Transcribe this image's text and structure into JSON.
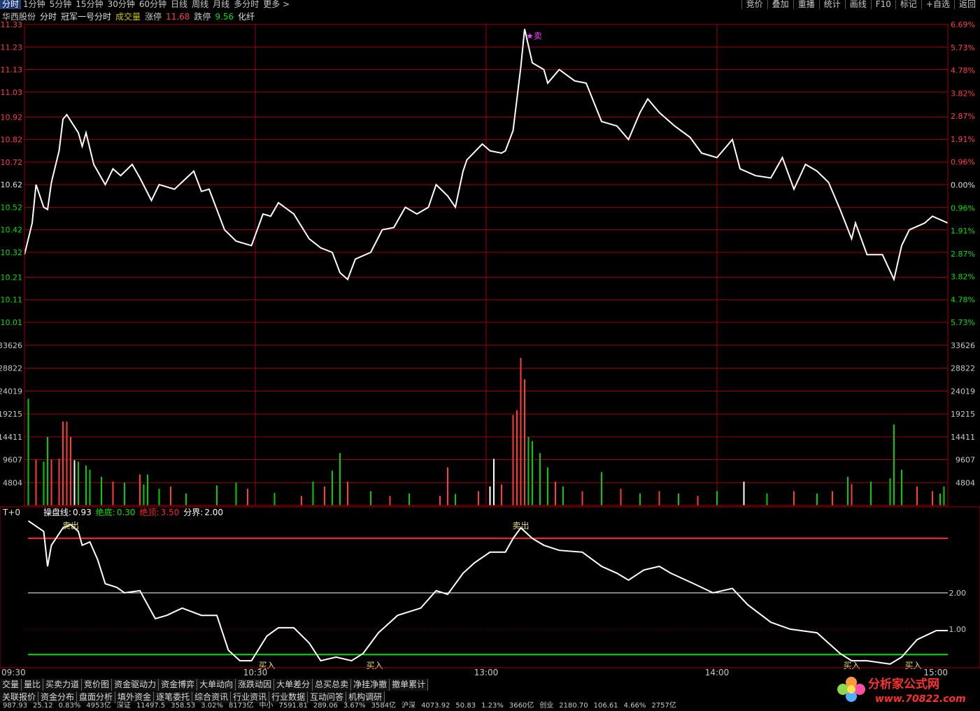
{
  "menu": [
    "分时",
    "1分钟",
    "5分钟",
    "15分钟",
    "30分钟",
    "60分钟",
    "日线",
    "周线",
    "月线",
    "多分时",
    "更多 >"
  ],
  "right_menu": [
    "竞价",
    "叠加",
    "重播",
    "统计",
    "画线",
    "F10",
    "标记",
    "+自选",
    "返回"
  ],
  "header": [
    {
      "text": "华西股份",
      "color": "#c8c8c8"
    },
    {
      "text": "分时",
      "color": "#e0e0e0"
    },
    {
      "text": "冠军一号分时",
      "color": "#e0e0e0"
    },
    {
      "text": "成交量",
      "color": "#d2c800"
    },
    {
      "text": "涨停",
      "color": "#c8c8c8"
    },
    {
      "text": "11.68",
      "color": "#ff4040"
    },
    {
      "text": "跌停",
      "color": "#c8c8c8"
    },
    {
      "text": "9.56",
      "color": "#00e000"
    },
    {
      "text": "化纤",
      "color": "#e0e0e0"
    }
  ],
  "chart_data": [
    {
      "type": "line",
      "color": "#ffffff",
      "x": [
        0,
        2,
        3,
        5,
        6,
        7,
        9,
        10,
        11,
        14,
        15,
        16,
        18,
        21,
        23,
        25,
        28,
        30,
        33,
        35,
        39,
        44,
        46,
        48,
        52,
        55,
        59,
        62,
        64,
        66,
        70,
        74,
        77,
        80,
        82,
        84,
        86,
        90,
        93,
        96,
        99,
        102,
        105,
        107,
        110,
        112,
        114,
        115,
        119,
        121,
        124,
        125,
        127,
        129,
        130,
        132,
        135,
        136,
        139,
        143,
        146,
        150,
        154,
        157,
        160,
        162,
        165,
        169,
        173,
        176,
        180,
        184,
        186,
        190,
        194,
        197,
        200,
        203,
        206,
        209,
        212,
        215,
        216,
        219,
        223,
        226,
        228,
        230,
        234,
        236,
        240
      ],
      "values": [
        10.31,
        10.45,
        10.62,
        10.52,
        10.51,
        10.63,
        10.77,
        10.91,
        10.93,
        10.85,
        10.79,
        10.85,
        10.71,
        10.62,
        10.69,
        10.66,
        10.71,
        10.65,
        10.55,
        10.62,
        10.6,
        10.68,
        10.59,
        10.6,
        10.42,
        10.37,
        10.35,
        10.49,
        10.48,
        10.54,
        10.49,
        10.38,
        10.34,
        10.32,
        10.23,
        10.2,
        10.29,
        10.32,
        10.42,
        10.43,
        10.52,
        10.49,
        10.52,
        10.62,
        10.57,
        10.52,
        10.68,
        10.73,
        10.8,
        10.77,
        10.76,
        10.77,
        10.86,
        11.14,
        11.31,
        11.16,
        11.13,
        11.07,
        11.13,
        11.08,
        11.07,
        10.9,
        10.88,
        10.82,
        10.94,
        11.0,
        10.94,
        10.88,
        10.83,
        10.76,
        10.74,
        10.82,
        10.69,
        10.66,
        10.65,
        10.74,
        10.6,
        10.71,
        10.68,
        10.63,
        10.51,
        10.38,
        10.45,
        10.31,
        10.31,
        10.2,
        10.35,
        10.42,
        10.45,
        10.48,
        10.45
      ],
      "xlim": [
        0,
        240
      ],
      "xticks": [
        {
          "value": 0,
          "label": "09:30"
        },
        {
          "value": 60,
          "label": "10:30"
        },
        {
          "value": 120,
          "label": "13:00"
        },
        {
          "value": 180,
          "label": "14:00"
        },
        {
          "value": 240,
          "label": "15:00"
        }
      ],
      "ylim": [
        10.01,
        11.33
      ],
      "yticks": [
        11.33,
        11.23,
        11.13,
        11.03,
        10.92,
        10.82,
        10.72,
        10.62,
        10.52,
        10.42,
        10.32,
        10.21,
        10.11,
        10.01
      ],
      "y2lim": [
        -5.73,
        6.69
      ],
      "y2ticks": [
        {
          "value": 6.69,
          "label": "6.69%"
        },
        {
          "value": 5.73,
          "label": "5.73%"
        },
        {
          "value": 4.78,
          "label": "4.78%"
        },
        {
          "value": 3.82,
          "label": "3.82%"
        },
        {
          "value": 2.87,
          "label": "2.87%"
        },
        {
          "value": 1.91,
          "label": "1.91%"
        },
        {
          "value": 0.96,
          "label": "0.96%"
        },
        {
          "value": 0,
          "label": "0.00%"
        },
        {
          "value": -0.96,
          "label": "0.96%"
        },
        {
          "value": -1.91,
          "label": "1.91%"
        },
        {
          "value": -2.87,
          "label": "2.87%"
        },
        {
          "value": -3.82,
          "label": "3.82%"
        },
        {
          "value": -4.78,
          "label": "4.78%"
        },
        {
          "value": -5.73,
          "label": "5.73%"
        }
      ],
      "grid": true,
      "annotations": [
        {
          "text": "★卖",
          "x": 130,
          "y": 11.31
        }
      ]
    },
    {
      "type": "bar",
      "x": [
        1,
        3,
        5,
        6,
        7,
        9,
        10,
        11,
        12,
        13,
        14,
        16,
        17,
        20,
        23,
        26,
        30,
        31,
        32,
        35,
        38,
        42,
        50,
        55,
        58,
        65,
        72,
        75,
        78,
        80,
        82,
        84,
        90,
        95,
        100,
        108,
        110,
        112,
        118,
        121,
        122,
        124,
        127,
        128,
        129,
        130,
        131,
        132,
        134,
        136,
        138,
        140,
        145,
        150,
        155,
        160,
        165,
        170,
        175,
        180,
        187,
        193,
        200,
        206,
        210,
        214,
        215,
        220,
        225,
        226,
        228,
        232,
        236,
        238,
        239
      ],
      "values": [
        22400,
        9600,
        9200,
        14400,
        9600,
        9800,
        17600,
        17600,
        14400,
        9500,
        9200,
        8400,
        7500,
        6000,
        5000,
        4800,
        6500,
        4400,
        6500,
        3500,
        4000,
        2500,
        4200,
        4800,
        3500,
        2600,
        2000,
        5000,
        4000,
        7300,
        11000,
        5000,
        3000,
        2000,
        2500,
        2000,
        8000,
        2400,
        3000,
        4000,
        9800,
        4400,
        19000,
        20000,
        31000,
        26500,
        14400,
        13500,
        11000,
        8000,
        5000,
        4000,
        3000,
        7000,
        3500,
        2500,
        3000,
        2500,
        2000,
        3000,
        5000,
        2500,
        3000,
        2500,
        3000,
        6000,
        4500,
        5000,
        5700,
        17000,
        7500,
        4000,
        3000,
        2500,
        4000
      ],
      "colors": [
        "#00d000",
        "#ff3c3c",
        "#00d000",
        "#00d000",
        "#ff3c3c",
        "#ff3c3c",
        "#ff3c3c",
        "#ff3c3c",
        "#ff3c3c",
        "#ffffff",
        "#00d000",
        "#00d000",
        "#00d000",
        "#00d000",
        "#ff3c3c",
        "#00d000",
        "#ff3c3c",
        "#00d000",
        "#00d000",
        "#00d000",
        "#ff3c3c",
        "#00d000",
        "#00d000",
        "#00d000",
        "#ff3c3c",
        "#00d000",
        "#ff3c3c",
        "#00d000",
        "#ff3c3c",
        "#00d000",
        "#00d000",
        "#ff3c3c",
        "#00d000",
        "#ff3c3c",
        "#00d000",
        "#ff3c3c",
        "#ff3c3c",
        "#00d000",
        "#ff3c3c",
        "#ffffff",
        "#ffffff",
        "#ff3c3c",
        "#ff3c3c",
        "#ff3c3c",
        "#ff3c3c",
        "#ff3c3c",
        "#00d000",
        "#00d000",
        "#00d000",
        "#00d000",
        "#ff3c3c",
        "#00d000",
        "#ff3c3c",
        "#00d000",
        "#ff3c3c",
        "#00d000",
        "#ff3c3c",
        "#00d000",
        "#ff3c3c",
        "#00d000",
        "#ffffff",
        "#00d000",
        "#ff3c3c",
        "#00d000",
        "#ff3c3c",
        "#00d000",
        "#ff3c3c",
        "#00d000",
        "#00d000",
        "#00d000",
        "#00d000",
        "#ff3c3c",
        "#ff3c3c",
        "#00d000",
        "#00d000"
      ],
      "xlim": [
        0,
        240
      ],
      "ylim": [
        0,
        38460
      ],
      "yticks": [
        33626,
        28822,
        24019,
        19215,
        14411,
        9607,
        4804
      ],
      "grid": true
    },
    {
      "type": "line",
      "color": "#ffffff",
      "title": "T+0",
      "params": [
        {
          "name": "操盘线:",
          "value": 0.93,
          "label": "0.93",
          "color": "#ffffff",
          "line": false
        },
        {
          "name": "绝底:",
          "value": 0.3,
          "label": "0.30",
          "color": "#00e000",
          "line": true
        },
        {
          "name": "绝顶:",
          "value": 3.5,
          "label": "3.50",
          "color": "#ff2020",
          "line": true
        },
        {
          "name": "分界:",
          "value": 2,
          "label": "2.00",
          "color": "#ffffff",
          "line": true
        }
      ],
      "x": [
        1,
        5,
        6,
        7,
        10,
        12,
        14,
        15,
        17,
        19,
        21,
        24,
        26,
        30,
        34,
        37,
        41,
        46,
        50,
        53,
        56,
        59,
        63,
        66,
        70,
        74,
        77,
        81,
        85,
        88,
        92,
        97,
        103,
        107,
        110,
        114,
        117,
        121,
        125,
        127,
        129,
        132,
        135,
        139,
        145,
        150,
        154,
        157,
        161,
        165,
        168,
        174,
        179,
        184,
        188,
        194,
        199,
        206,
        212,
        215,
        219,
        225,
        228,
        232,
        237,
        240
      ],
      "values": [
        3.98,
        3.69,
        2.73,
        3.31,
        3.79,
        3.88,
        3.69,
        3.31,
        3.4,
        2.92,
        2.25,
        2.15,
        2.0,
        2.06,
        1.29,
        1.38,
        1.58,
        1.38,
        1.38,
        0.42,
        0.13,
        0.13,
        0.81,
        1.04,
        1.04,
        0.62,
        0.13,
        0.23,
        0.13,
        0.33,
        0.9,
        1.38,
        1.58,
        2.06,
        1.96,
        2.54,
        2.83,
        3.12,
        3.12,
        3.5,
        3.79,
        3.5,
        3.31,
        3.17,
        3.12,
        2.73,
        2.54,
        2.35,
        2.63,
        2.73,
        2.54,
        2.25,
        2.0,
        2.12,
        1.67,
        1.19,
        1.0,
        0.9,
        0.33,
        0.13,
        0.13,
        0.04,
        0.23,
        0.71,
        0.96,
        0.96
      ],
      "xlim": [
        0,
        240
      ],
      "ylim": [
        -0.06,
        4.04
      ],
      "yticks": [
        {
          "value": 1,
          "label": "1.00"
        },
        {
          "value": 2,
          "label": "2.00"
        }
      ],
      "annotations": [
        {
          "text": "卖出",
          "x": 12,
          "y": 3.85
        },
        {
          "text": "卖出",
          "x": 129,
          "y": 3.85
        },
        {
          "text": "买入",
          "x": 63,
          "y": 0
        },
        {
          "text": "买入",
          "x": 91,
          "y": 0
        },
        {
          "text": "买入",
          "x": 215,
          "y": 0
        },
        {
          "text": "买入",
          "x": 231,
          "y": 0
        }
      ]
    }
  ],
  "tabs_row1": [
    "交量",
    "量比",
    "买卖力道",
    "竞价图",
    "资金驱动力",
    "资金博弈",
    "大单动向",
    "涨跌动因",
    "大单差分",
    "总买总卖",
    "净挂净撤",
    "撤单累计"
  ],
  "tabs_row2": [
    "关联报价",
    "资金分布",
    "盘面分析",
    "填外资金",
    "逐笔委托",
    "综合资讯",
    "行业资讯",
    "行业数据",
    "互动问答",
    "机构调研"
  ],
  "status": [
    "987.93",
    "25.12",
    "0.83%",
    "4953亿",
    "深证",
    "11497.5",
    "358.53",
    "3.02%",
    "8173亿",
    "中小",
    "7591.81",
    "289.06",
    "3.67%",
    "3584亿",
    "沪深",
    "4073.92",
    "50.83",
    "1.23%",
    "3660亿",
    "创业",
    "2180.70",
    "106.61",
    "4.66%",
    "2757亿"
  ],
  "watermark": {
    "title": "分析家公式网",
    "url": "www.70822.com"
  }
}
